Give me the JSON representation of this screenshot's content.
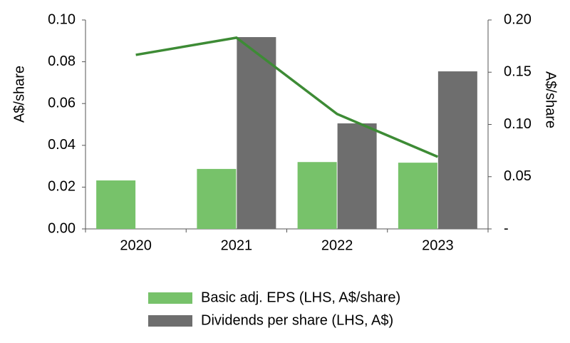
{
  "chart_data": {
    "type": "bar",
    "categories": [
      "2020",
      "2021",
      "2022",
      "2023"
    ],
    "y_label": "A$/share",
    "y2_label": "A$/share",
    "series": [
      {
        "name": "Basic adj. EPS (LHS, A$/share)",
        "color": "#77c26a",
        "type": "bar",
        "values": [
          0.0232,
          0.0287,
          0.032,
          0.0317
        ]
      },
      {
        "name": "Dividends per share (LHS, A$)",
        "color": "#6e6e6e",
        "type": "bar",
        "values": [
          null,
          0.0918,
          0.0505,
          0.0754
        ]
      },
      {
        "color": "#3d8b35",
        "type": "line",
        "axis": "y2",
        "values": [
          0.1666,
          0.183,
          0.11,
          0.069
        ]
      }
    ],
    "ylim": [
      0,
      0.1
    ],
    "yticks": [
      {
        "value": 0,
        "label": "0.00"
      },
      {
        "value": 0.02,
        "label": "0.02"
      },
      {
        "value": 0.04,
        "label": "0.04"
      },
      {
        "value": 0.06,
        "label": "0.06"
      },
      {
        "value": 0.08,
        "label": "0.08"
      },
      {
        "value": 0.1,
        "label": "0.10"
      }
    ],
    "y2lim": [
      0,
      0.2
    ],
    "y2ticks": [
      {
        "value": 0,
        "label": "-"
      },
      {
        "value": 0.05,
        "label": "0.05"
      },
      {
        "value": 0.1,
        "label": "0.10"
      },
      {
        "value": 0.15,
        "label": "0.15"
      },
      {
        "value": 0.2,
        "label": "0.20"
      }
    ],
    "legend": "bottom"
  }
}
